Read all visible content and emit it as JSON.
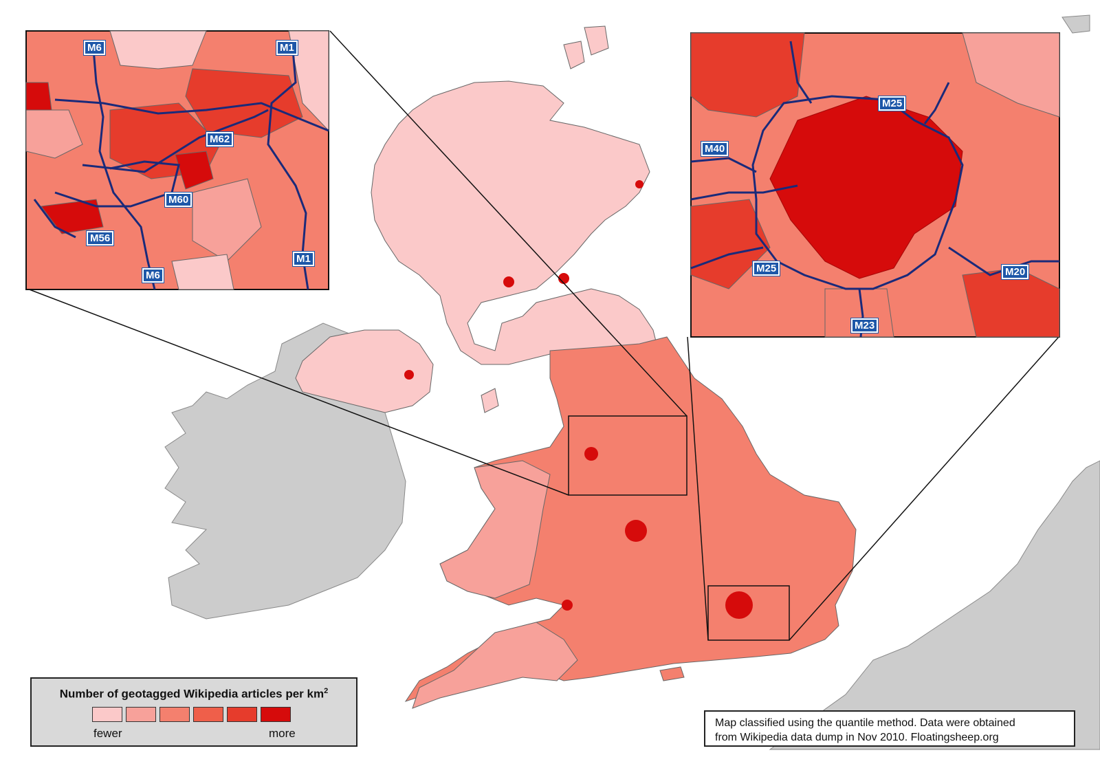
{
  "legend": {
    "title": "Number of geotagged Wikipedia articles per km",
    "title_superscript": "2",
    "low_label": "fewer",
    "high_label": "more",
    "classes": [
      "#fbc9c9",
      "#f7a19a",
      "#f4806e",
      "#ef5f4a",
      "#e63c2c",
      "#d60b0b"
    ]
  },
  "note": {
    "line1": "Map classified using the quantile method. Data were obtained",
    "line2": "from Wikipedia data dump in Nov 2010. Floatingsheep.org"
  },
  "inset_manchester": {
    "roads": [
      "M6",
      "M1",
      "M62",
      "M60",
      "M56",
      "M6",
      "M1"
    ]
  },
  "inset_london": {
    "roads": [
      "M25",
      "M40",
      "M25",
      "M20",
      "M23"
    ]
  },
  "colors": {
    "land_other": "#cccccc",
    "motorway": "#1a2a7a",
    "shield_bg": "#1d57a8",
    "border": "#555555"
  }
}
